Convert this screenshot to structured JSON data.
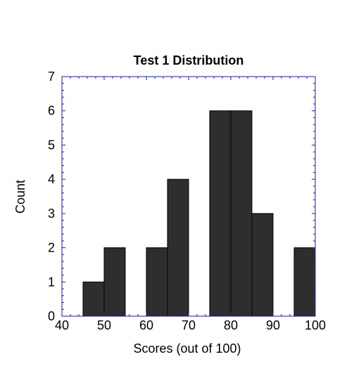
{
  "chart_data": {
    "type": "bar",
    "title": "Test 1 Distribution",
    "xlabel": "Scores (out of 100)",
    "ylabel": "Count",
    "xlim": [
      40,
      100
    ],
    "ylim": [
      0,
      7
    ],
    "x_ticks": [
      40,
      50,
      60,
      70,
      80,
      90,
      100
    ],
    "y_ticks": [
      0,
      1,
      2,
      3,
      4,
      5,
      6,
      7
    ],
    "bins": [
      {
        "start": 45,
        "end": 50,
        "count": 1
      },
      {
        "start": 50,
        "end": 55,
        "count": 2
      },
      {
        "start": 60,
        "end": 65,
        "count": 2
      },
      {
        "start": 65,
        "end": 70,
        "count": 4
      },
      {
        "start": 75,
        "end": 80,
        "count": 6
      },
      {
        "start": 80,
        "end": 85,
        "count": 6
      },
      {
        "start": 85,
        "end": 90,
        "count": 3
      },
      {
        "start": 95,
        "end": 100,
        "count": 2
      }
    ],
    "grid": false,
    "legend": "none",
    "bar_color": "#2e2e2e",
    "axis_color": "#1a1aa0"
  }
}
